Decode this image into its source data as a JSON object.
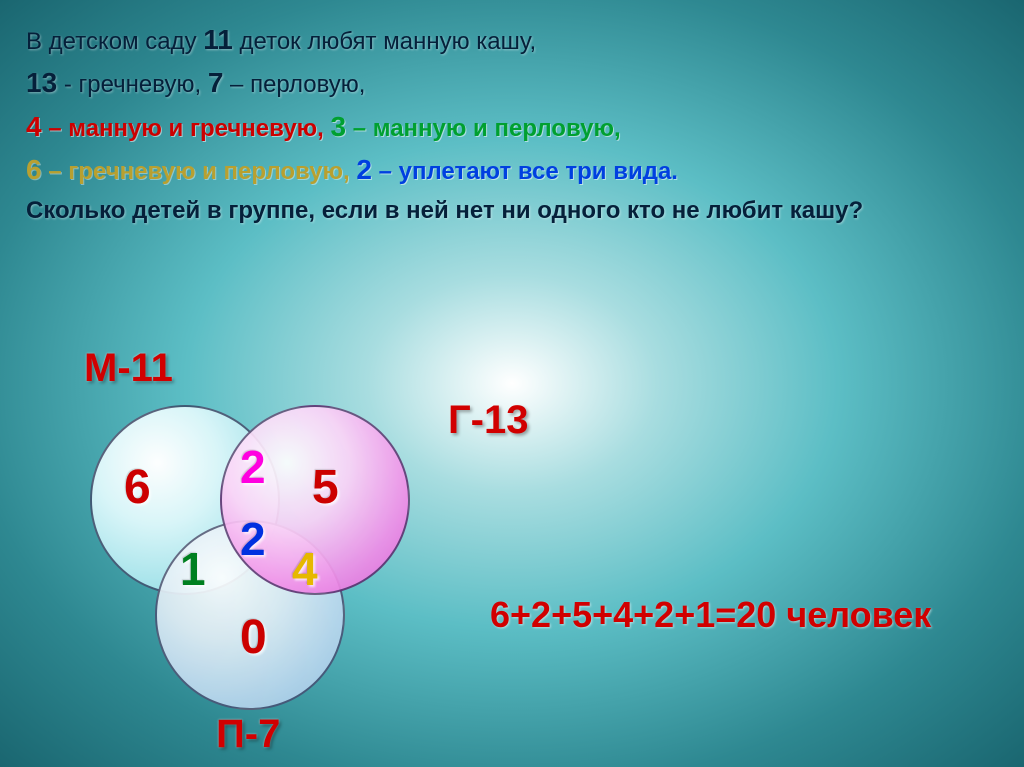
{
  "problem": {
    "l1_a": "В детском саду ",
    "l1_num": "11",
    "l1_b": " деток любят манную кашу,",
    "l2_a": "13",
    "l2_b": " - гречневую, ",
    "l2_c": "7",
    "l2_d": " – перловую,",
    "l3_a": "4",
    "l3_b": " – манную и гречневую,  ",
    "l3_c": "3",
    "l3_d": " – манную и перловую,",
    "l4_a": "6",
    "l4_b": " – гречневую и перловую,  ",
    "l4_c": "2",
    "l4_d": " – уплетают все три вида.",
    "l5": "Сколько детей в группе, если в ней нет ни одного кто не любит кашу?"
  },
  "venn": {
    "type": "venn-3",
    "labels": {
      "M": "М-11",
      "G": "Г-13",
      "P": "П-7"
    },
    "regions": {
      "only_M": 6,
      "only_G": 5,
      "only_P": 0,
      "MG": 2,
      "MP": 1,
      "GP": 4,
      "MGP": 2
    },
    "circle_colors": {
      "M": "#a5e3ea",
      "G": "#f08de8",
      "P": "#b9d7ee"
    },
    "label_color": "#d10000",
    "number_colors": {
      "only_M": "#cc0000",
      "only_G": "#cc0000",
      "only_P": "#cc0000",
      "MG": "#ff00e0",
      "MP": "#008020",
      "GP": "#e6b800",
      "MGP": "#0030e0"
    }
  },
  "answer": {
    "equation": "6+2+5+4+2+1=20 человек",
    "color": "#d10000",
    "fontsize": 36
  },
  "colors": {
    "text_dark": "#05203a",
    "bg_center": "#ffffff",
    "bg_mid": "#5cbec5",
    "bg_edge": "#1a6670"
  }
}
